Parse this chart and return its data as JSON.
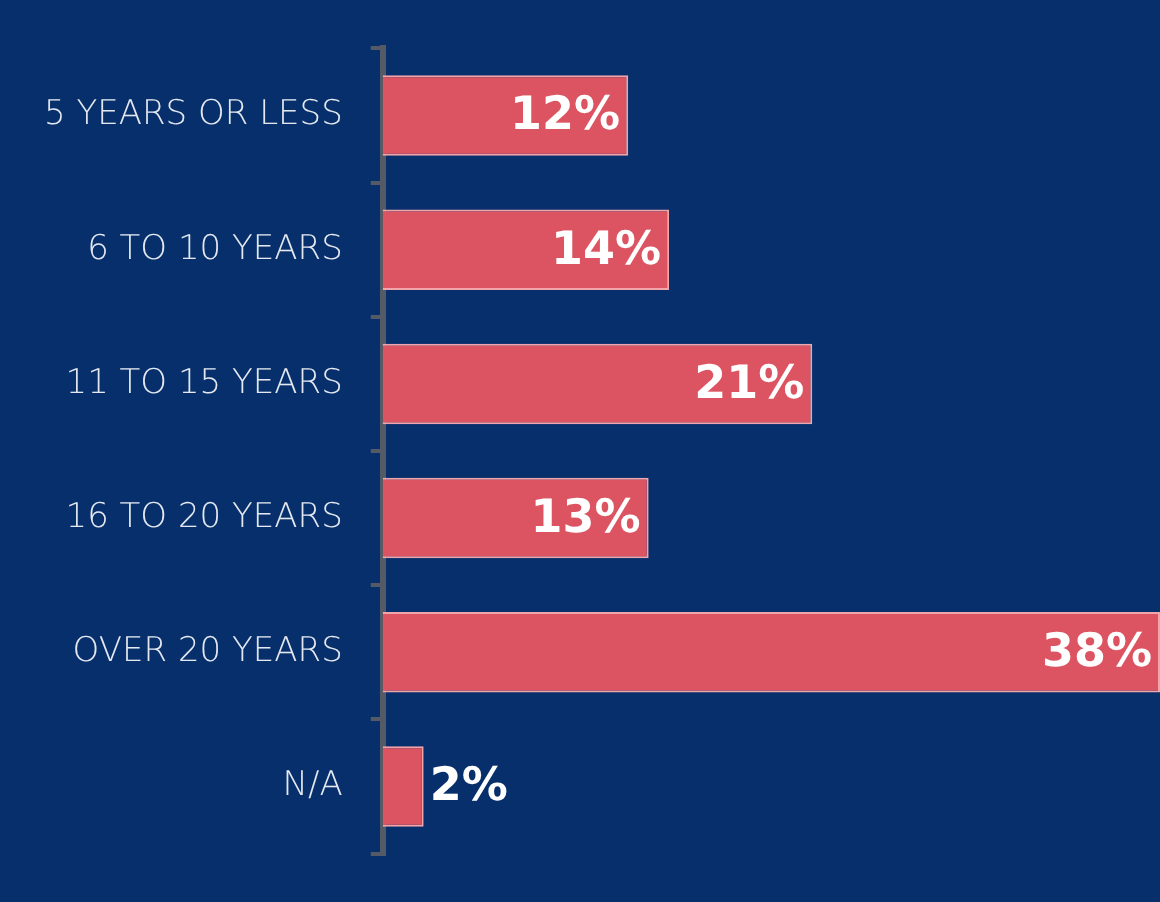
{
  "chart_data": {
    "type": "bar",
    "orientation": "horizontal",
    "categories": [
      "5 YEARS OR LESS",
      "6 TO 10 YEARS",
      "11 TO 15 YEARS",
      "16 TO 20 YEARS",
      "OVER 20 YEARS",
      "N/A"
    ],
    "values": [
      12,
      14,
      21,
      13,
      38,
      2
    ],
    "value_labels": [
      "12%",
      "14%",
      "21%",
      "13%",
      "38%",
      "2%"
    ],
    "color": "#dc5461",
    "legend": false,
    "grid": false
  }
}
